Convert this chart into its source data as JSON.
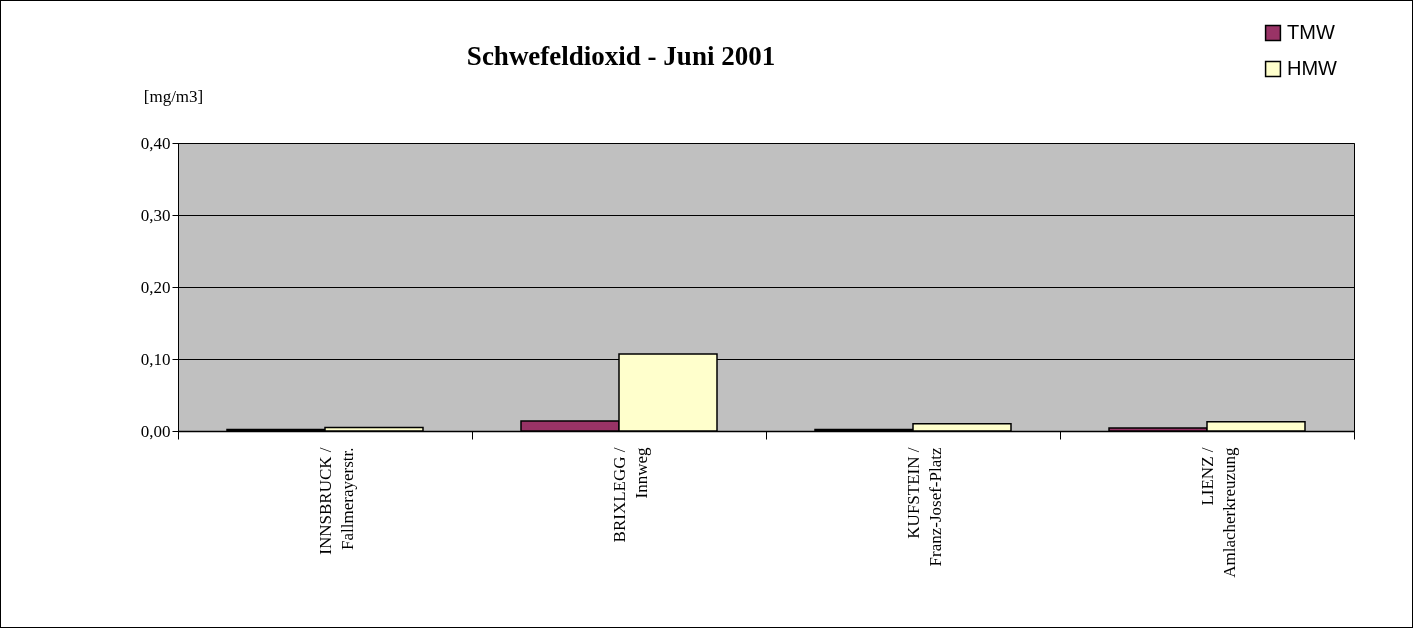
{
  "chart_data": {
    "type": "bar",
    "title": "Schwefeldioxid - Juni 2001",
    "ylabel": "[mg/m3]",
    "categories": [
      "INNSBRUCK /\nFallmerayerstr.",
      "BRIXLEGG /\nInnweg",
      "KUFSTEIN /\nFranz-Josef-Platz",
      "LIENZ /\nAmlacherkreuzung"
    ],
    "series": [
      {
        "name": "TMW",
        "color": "#993366",
        "values": [
          0.002,
          0.014,
          0.002,
          0.004
        ]
      },
      {
        "name": "HMW",
        "color": "#ffffcc",
        "values": [
          0.005,
          0.107,
          0.01,
          0.013
        ]
      }
    ],
    "ylim": [
      0,
      0.4
    ],
    "yticks": [
      {
        "value": 0,
        "label": "0,00"
      },
      {
        "value": 0.1,
        "label": "0,10"
      },
      {
        "value": 0.2,
        "label": "0,20"
      },
      {
        "value": 0.3,
        "label": "0,30"
      },
      {
        "value": 0.4,
        "label": "0,40"
      }
    ],
    "grid": "y",
    "legend": "top right"
  }
}
